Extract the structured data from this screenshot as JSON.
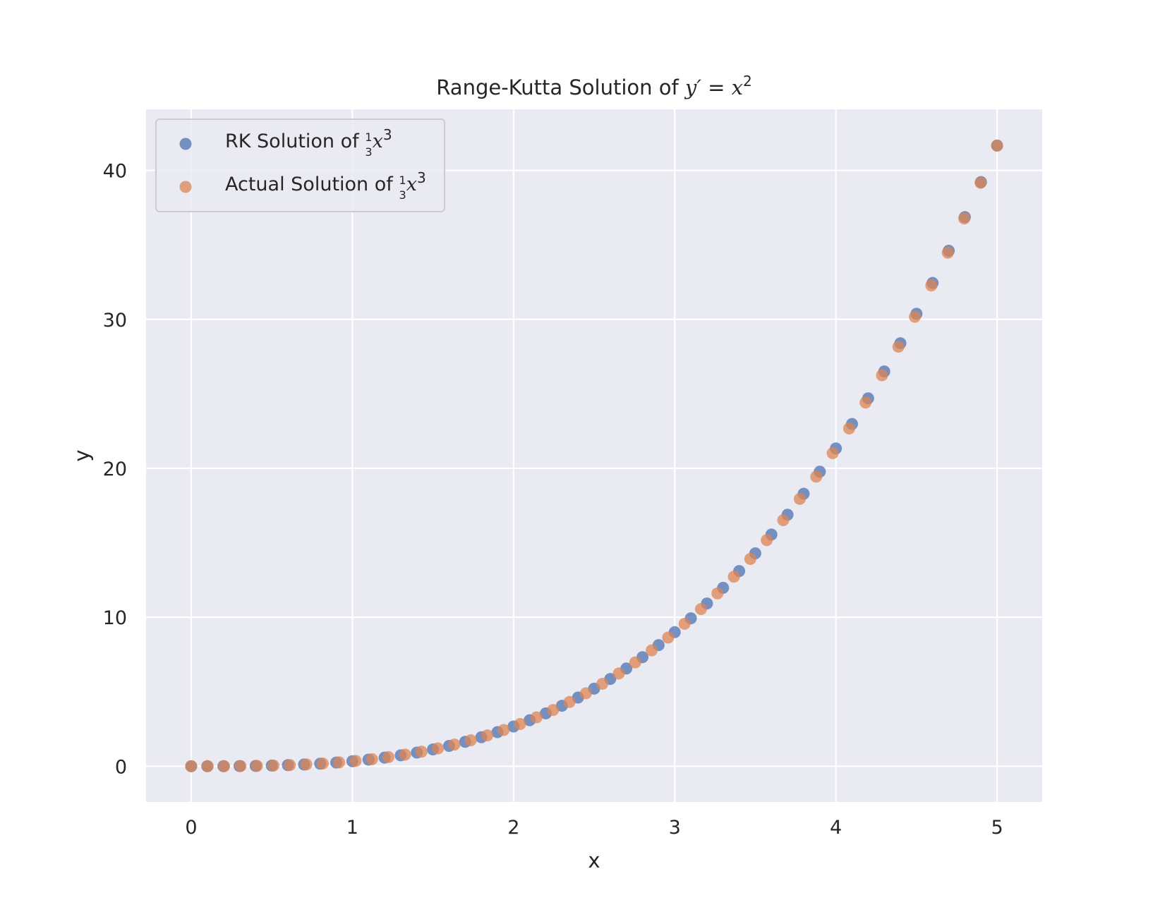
{
  "chart_data": {
    "type": "scatter",
    "title": "Range-Kutta Solution of y′ = x²",
    "title_parts": {
      "prefix": "Range-Kutta Solution of ",
      "lhs": "y′",
      "eq": " = ",
      "base": "x",
      "exp": "2"
    },
    "xlabel": "x",
    "ylabel": "y",
    "xlim": [
      -0.28,
      5.28
    ],
    "ylim": [
      -2.4,
      44.1
    ],
    "xticks": [
      0,
      1,
      2,
      3,
      4,
      5
    ],
    "xtick_labels": [
      "0",
      "1",
      "2",
      "3",
      "4",
      "5"
    ],
    "yticks": [
      0,
      10,
      20,
      30,
      40
    ],
    "ytick_labels": [
      "0",
      "10",
      "20",
      "30",
      "40"
    ],
    "grid": true,
    "legend_position": "upper-left",
    "series": [
      {
        "name": "RK Solution of ⅓x³",
        "label_prefix": "RK Solution of ",
        "color": "#4c72b0",
        "x": [
          0,
          0.1,
          0.2,
          0.3,
          0.4,
          0.5,
          0.6,
          0.7,
          0.8,
          0.9,
          1.0,
          1.1,
          1.2,
          1.3,
          1.4,
          1.5,
          1.6,
          1.7,
          1.8,
          1.9,
          2.0,
          2.1,
          2.2,
          2.3,
          2.4,
          2.5,
          2.6,
          2.7,
          2.8,
          2.9,
          3.0,
          3.1,
          3.2,
          3.3,
          3.4,
          3.5,
          3.6,
          3.7,
          3.8,
          3.9,
          4.0,
          4.1,
          4.2,
          4.3,
          4.4,
          4.5,
          4.6,
          4.7,
          4.8,
          4.9,
          5.0
        ],
        "y": [
          0.0,
          0.0003,
          0.0027,
          0.009,
          0.0213,
          0.0417,
          0.072,
          0.1143,
          0.1707,
          0.243,
          0.3333,
          0.4437,
          0.576,
          0.7323,
          0.9147,
          1.125,
          1.3653,
          1.6377,
          1.944,
          2.2863,
          2.6667,
          3.087,
          3.5493,
          4.0557,
          4.608,
          5.2083,
          5.8587,
          6.561,
          7.3173,
          8.1297,
          9.0,
          9.9303,
          10.9227,
          11.979,
          13.1013,
          14.2917,
          15.552,
          16.8843,
          18.2907,
          19.773,
          21.3333,
          22.9737,
          24.696,
          26.5023,
          28.3947,
          30.375,
          32.4453,
          34.6077,
          36.864,
          39.2163,
          41.6667
        ]
      },
      {
        "name": "Actual Solution of ⅓x³",
        "label_prefix": "Actual Solution of ",
        "color": "#dd8452",
        "x": [
          0.0,
          0.102,
          0.204,
          0.306,
          0.408,
          0.51,
          0.612,
          0.714,
          0.816,
          0.918,
          1.02,
          1.122,
          1.224,
          1.327,
          1.429,
          1.531,
          1.633,
          1.735,
          1.837,
          1.939,
          2.041,
          2.143,
          2.245,
          2.347,
          2.449,
          2.551,
          2.653,
          2.755,
          2.857,
          2.959,
          3.061,
          3.163,
          3.265,
          3.367,
          3.469,
          3.571,
          3.673,
          3.776,
          3.878,
          3.98,
          4.082,
          4.184,
          4.286,
          4.388,
          4.49,
          4.592,
          4.694,
          4.796,
          4.898,
          5.0
        ],
        "y": [
          0.0,
          0.0004,
          0.0028,
          0.0096,
          0.0227,
          0.0442,
          0.0764,
          0.1213,
          0.1812,
          0.2579,
          0.3537,
          0.4708,
          0.6113,
          0.7789,
          0.9727,
          1.1962,
          1.4516,
          1.741,
          2.0664,
          2.43,
          2.834,
          3.2804,
          3.7715,
          4.3095,
          4.8959,
          5.5338,
          6.2244,
          6.9702,
          7.7737,
          8.6364,
          9.5605,
          10.5485,
          11.6022,
          12.7234,
          13.915,
          15.1801,
          16.5178,
          17.9462,
          19.4397,
          21.0151,
          22.6724,
          24.415,
          26.2446,
          28.1628,
          30.1728,
          32.2766,
          34.4756,
          36.7727,
          39.1694,
          41.6667
        ]
      }
    ]
  }
}
